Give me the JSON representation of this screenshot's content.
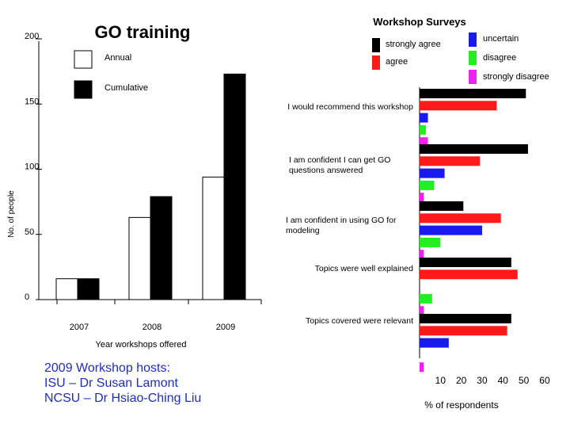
{
  "chart_data": [
    {
      "type": "bar",
      "title": "GO training",
      "xlabel": "Year workshops offered",
      "ylabel": "No. of people",
      "ylim": [
        0,
        200
      ],
      "yticks": [
        0,
        50,
        100,
        150,
        200
      ],
      "categories": [
        "2007",
        "2008",
        "2009"
      ],
      "series": [
        {
          "name": "Annual",
          "values": [
            16,
            63,
            94
          ],
          "color": "#ffffff"
        },
        {
          "name": "Cumulative",
          "values": [
            16,
            79,
            173
          ],
          "color": "#000000"
        }
      ],
      "legend": "top-left",
      "grid": false
    },
    {
      "type": "bar",
      "orientation": "horizontal",
      "title": "Workshop Surveys",
      "xlabel": "% of respondents",
      "xlim": [
        0,
        60
      ],
      "xticks": [
        10,
        20,
        30,
        40,
        50,
        60
      ],
      "categories": [
        "I would recommend this workshop",
        "I am confident I can get GO questions answered",
        "I am confident in using GO for modeling",
        "Topics were well explained",
        "Topics covered were relevant"
      ],
      "series": [
        {
          "name": "strongly agree",
          "values": [
            51,
            52,
            21,
            44,
            44
          ],
          "color": "#000000"
        },
        {
          "name": "agree",
          "values": [
            37,
            29,
            39,
            47,
            42
          ],
          "color": "#ff1a1a"
        },
        {
          "name": "uncertain",
          "values": [
            4,
            12,
            30,
            0,
            14
          ],
          "color": "#1a1aee"
        },
        {
          "name": "disagree",
          "values": [
            3,
            7,
            10,
            6,
            0
          ],
          "color": "#22ee22"
        },
        {
          "name": "strongly disagree",
          "values": [
            4,
            2,
            2,
            2,
            2
          ],
          "color": "#ee22ee"
        }
      ],
      "legend": "top",
      "grid": false
    }
  ],
  "hosts": {
    "line1": "2009 Workshop hosts:",
    "line2": "ISU – Dr Susan Lamont",
    "line3": "NCSU – Dr Hsiao-Ching Liu"
  }
}
